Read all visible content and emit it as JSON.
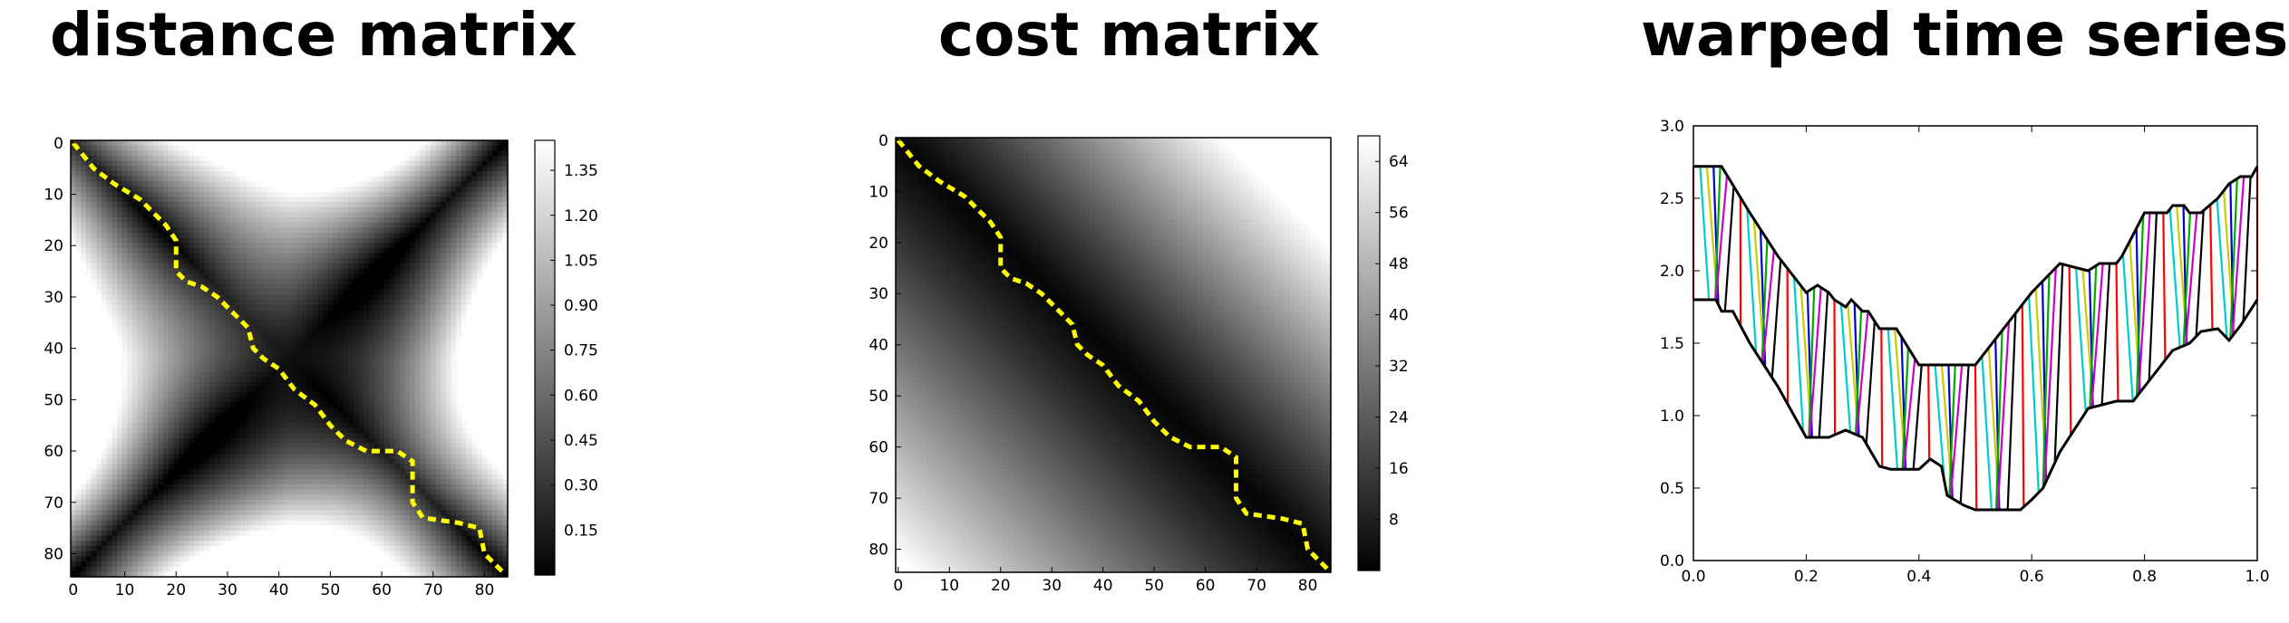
{
  "titles": {
    "distance": "distance matrix",
    "cost": "cost matrix",
    "warped": "warped time series"
  },
  "chart_data": [
    {
      "type": "heatmap",
      "title": "distance matrix",
      "colormap": "gray",
      "size": 85,
      "xlim": [
        0,
        84
      ],
      "ylim": [
        84,
        0
      ],
      "xticks": [
        0,
        10,
        20,
        30,
        40,
        50,
        60,
        70,
        80
      ],
      "yticks": [
        0,
        10,
        20,
        30,
        40,
        50,
        60,
        70,
        80
      ],
      "colorbar": {
        "min": 0.0,
        "max": 1.45,
        "ticks": [
          0.15,
          0.3,
          0.45,
          0.6,
          0.75,
          0.9,
          1.05,
          1.2,
          1.35
        ]
      },
      "path_color": "#ffff00",
      "warping_path": [
        [
          0,
          0
        ],
        [
          4,
          5
        ],
        [
          8,
          8
        ],
        [
          13,
          11
        ],
        [
          18,
          16
        ],
        [
          20,
          19
        ],
        [
          20,
          25
        ],
        [
          22,
          27
        ],
        [
          25,
          28
        ],
        [
          28,
          30
        ],
        [
          31,
          33
        ],
        [
          34,
          36
        ],
        [
          35,
          40
        ],
        [
          37,
          42
        ],
        [
          40,
          44
        ],
        [
          43,
          48
        ],
        [
          47,
          51
        ],
        [
          50,
          55
        ],
        [
          53,
          58
        ],
        [
          57,
          60
        ],
        [
          63,
          60
        ],
        [
          66,
          62
        ],
        [
          66,
          70
        ],
        [
          68,
          73
        ],
        [
          75,
          74
        ],
        [
          79,
          75
        ],
        [
          80,
          80
        ],
        [
          84,
          84
        ]
      ]
    },
    {
      "type": "heatmap",
      "title": "cost matrix",
      "colormap": "gray",
      "size": 85,
      "xlim": [
        0,
        84
      ],
      "ylim": [
        84,
        0
      ],
      "xticks": [
        0,
        10,
        20,
        30,
        40,
        50,
        60,
        70,
        80
      ],
      "yticks": [
        0,
        10,
        20,
        30,
        40,
        50,
        60,
        70,
        80
      ],
      "colorbar": {
        "min": 0,
        "max": 68,
        "ticks": [
          8,
          16,
          24,
          32,
          40,
          48,
          56,
          64
        ]
      },
      "path_color": "#ffff00",
      "warping_path": [
        [
          0,
          0
        ],
        [
          4,
          5
        ],
        [
          8,
          8
        ],
        [
          13,
          11
        ],
        [
          18,
          16
        ],
        [
          20,
          19
        ],
        [
          20,
          25
        ],
        [
          22,
          27
        ],
        [
          25,
          28
        ],
        [
          28,
          30
        ],
        [
          31,
          33
        ],
        [
          34,
          36
        ],
        [
          35,
          40
        ],
        [
          37,
          42
        ],
        [
          40,
          44
        ],
        [
          43,
          48
        ],
        [
          47,
          51
        ],
        [
          50,
          55
        ],
        [
          53,
          58
        ],
        [
          57,
          60
        ],
        [
          63,
          60
        ],
        [
          66,
          62
        ],
        [
          66,
          70
        ],
        [
          68,
          73
        ],
        [
          75,
          74
        ],
        [
          79,
          75
        ],
        [
          80,
          80
        ],
        [
          84,
          84
        ]
      ]
    },
    {
      "type": "line",
      "title": "warped time series",
      "xlim": [
        0.0,
        1.0
      ],
      "ylim": [
        0.0,
        3.0
      ],
      "xticks": [
        0.0,
        0.2,
        0.4,
        0.6,
        0.8,
        1.0
      ],
      "yticks": [
        0.0,
        0.5,
        1.0,
        1.5,
        2.0,
        2.5,
        3.0
      ],
      "xtick_labels": [
        "0.0",
        "0.2",
        "0.4",
        "0.6",
        "0.8",
        "1.0"
      ],
      "ytick_labels": [
        "0.0",
        "0.5",
        "1.0",
        "1.5",
        "2.0",
        "2.5",
        "3.0"
      ],
      "series": [
        {
          "x": [
            0.0,
            0.05,
            0.1,
            0.15,
            0.2,
            0.22,
            0.24,
            0.25,
            0.27,
            0.28,
            0.3,
            0.31,
            0.33,
            0.35,
            0.36,
            0.4,
            0.45,
            0.5,
            0.55,
            0.6,
            0.65,
            0.7,
            0.72,
            0.75,
            0.76,
            0.78,
            0.8,
            0.84,
            0.85,
            0.87,
            0.88,
            0.9,
            0.93,
            0.95,
            0.97,
            0.99,
            1.0
          ],
          "y": [
            2.72,
            2.72,
            2.4,
            2.1,
            1.85,
            1.9,
            1.85,
            1.8,
            1.75,
            1.8,
            1.72,
            1.72,
            1.6,
            1.6,
            1.6,
            1.35,
            1.35,
            1.35,
            1.6,
            1.85,
            2.05,
            2.0,
            2.05,
            2.05,
            2.1,
            2.25,
            2.4,
            2.4,
            2.45,
            2.45,
            2.4,
            2.4,
            2.5,
            2.6,
            2.65,
            2.65,
            2.72
          ]
        },
        {
          "x": [
            0.0,
            0.04,
            0.05,
            0.07,
            0.1,
            0.15,
            0.2,
            0.24,
            0.27,
            0.3,
            0.33,
            0.35,
            0.38,
            0.4,
            0.42,
            0.44,
            0.45,
            0.48,
            0.5,
            0.55,
            0.58,
            0.6,
            0.62,
            0.65,
            0.7,
            0.75,
            0.78,
            0.82,
            0.85,
            0.88,
            0.9,
            0.93,
            0.95,
            0.97,
            1.0
          ],
          "y": [
            1.8,
            1.8,
            1.72,
            1.72,
            1.5,
            1.2,
            0.85,
            0.85,
            0.9,
            0.85,
            0.65,
            0.63,
            0.63,
            0.63,
            0.7,
            0.65,
            0.45,
            0.38,
            0.35,
            0.35,
            0.35,
            0.42,
            0.5,
            0.75,
            1.05,
            1.1,
            1.1,
            1.3,
            1.45,
            1.5,
            1.58,
            1.6,
            1.52,
            1.62,
            1.8
          ]
        }
      ],
      "connector_colors": [
        "#ff0000",
        "#00cccc",
        "#cccc00",
        "#0000cc",
        "#00aa00",
        "#cc00cc",
        "#000000"
      ]
    }
  ]
}
